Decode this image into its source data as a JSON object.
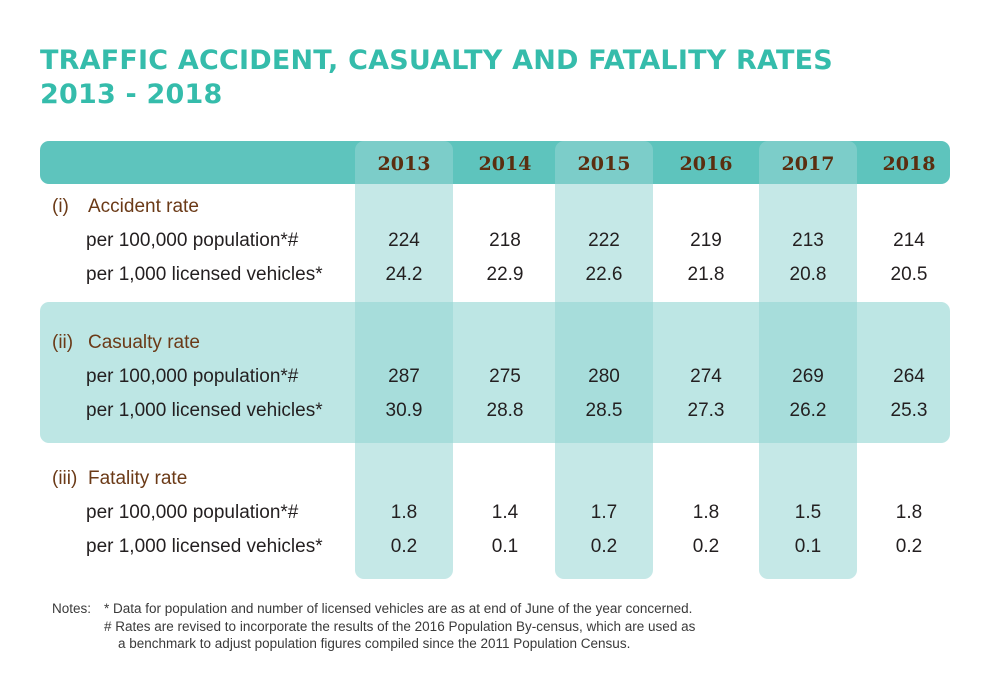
{
  "title": {
    "line1": "TRAFFIC ACCIDENT, CASUALTY AND FATALITY RATES",
    "line2": "2013 - 2018"
  },
  "years": [
    "2013",
    "2014",
    "2015",
    "2016",
    "2017",
    "2018"
  ],
  "sections": [
    {
      "num": "(i)",
      "title": "Accident rate",
      "rows": [
        {
          "label": "per 100,000 population*#",
          "values": [
            "224",
            "218",
            "222",
            "219",
            "213",
            "214"
          ]
        },
        {
          "label": "per 1,000 licensed vehicles*",
          "values": [
            "24.2",
            "22.9",
            "22.6",
            "21.8",
            "20.8",
            "20.5"
          ]
        }
      ]
    },
    {
      "num": "(ii)",
      "title": "Casualty rate",
      "rows": [
        {
          "label": "per 100,000 population*#",
          "values": [
            "287",
            "275",
            "280",
            "274",
            "269",
            "264"
          ]
        },
        {
          "label": "per 1,000 licensed vehicles*",
          "values": [
            "30.9",
            "28.8",
            "28.5",
            "27.3",
            "26.2",
            "25.3"
          ]
        }
      ]
    },
    {
      "num": "(iii)",
      "title": "Fatality rate",
      "rows": [
        {
          "label": "per 100,000 population*#",
          "values": [
            "1.8",
            "1.4",
            "1.7",
            "1.8",
            "1.5",
            "1.8"
          ]
        },
        {
          "label": "per 1,000 licensed vehicles*",
          "values": [
            "0.2",
            "0.1",
            "0.2",
            "0.2",
            "0.1",
            "0.2"
          ]
        }
      ]
    }
  ],
  "notes": {
    "label": "Notes:",
    "lines": [
      "* Data for population and number of licensed vehicles are as at end of June of the year concerned.",
      "# Rates are revised to incorporate the results of the 2016 Population By-census, which are used as",
      "a benchmark to adjust population figures compiled since the 2011 Population Census."
    ]
  },
  "colors": {
    "title": "#35bcab",
    "header_band": "#5ec4bd",
    "highlight_band": "#bde6e4",
    "section_title": "#6b3a17",
    "year_text": "#5a2e10"
  }
}
